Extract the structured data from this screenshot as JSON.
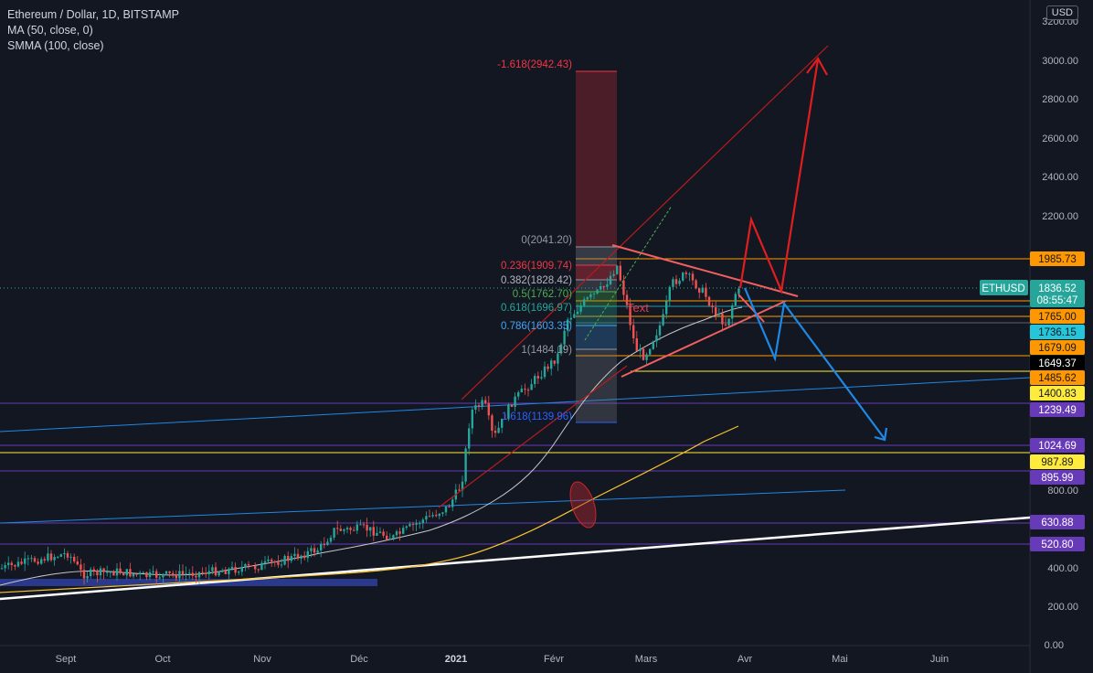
{
  "legend": {
    "symbol": "Ethereum / Dollar, 1D, BITSTAMP",
    "ma": "MA (50, close, 0)",
    "smma": "SMMA (100, close)"
  },
  "currency_button": "USD",
  "chart_data": {
    "type": "candlestick",
    "title": "Ethereum / Dollar, 1D, BITSTAMP",
    "xlabel": "",
    "ylabel": "",
    "ylim": [
      0,
      3200
    ],
    "grid": false,
    "y_ticks": [
      "3200.00",
      "3000.00",
      "2800.00",
      "2600.00",
      "2400.00",
      "2200.00",
      "800.00",
      "400.00",
      "200.00",
      "0.00"
    ],
    "x_ticks": [
      "Sept",
      "Oct",
      "Nov",
      "Déc",
      "2021",
      "Févr",
      "Mars",
      "Avr",
      "Mai",
      "Juin"
    ],
    "current_price": {
      "symbol": "ETHUSD",
      "value": "1836.52",
      "countdown": "08:55:47"
    },
    "price_labels": [
      {
        "value": "1985.73",
        "color": "#ff9800"
      },
      {
        "value": "1765.00",
        "color": "#ff9800"
      },
      {
        "value": "1736.15",
        "color": "#26c6da"
      },
      {
        "value": "1679.09",
        "color": "#ff9800"
      },
      {
        "value": "1649.37",
        "color": "#000000"
      },
      {
        "value": "1485.62",
        "color": "#ff9800"
      },
      {
        "value": "1400.83",
        "color": "#ffeb3b"
      },
      {
        "value": "1239.49",
        "color": "#673ab7"
      },
      {
        "value": "1024.69",
        "color": "#673ab7"
      },
      {
        "value": "987.89",
        "color": "#ffeb3b"
      },
      {
        "value": "895.99",
        "color": "#673ab7"
      },
      {
        "value": "630.88",
        "color": "#673ab7"
      },
      {
        "value": "520.80",
        "color": "#673ab7"
      }
    ],
    "fibonacci": [
      {
        "label": "-1.618(2942.43)",
        "color": "#f23645"
      },
      {
        "label": "0(2041.20)",
        "color": "#9598a1"
      },
      {
        "label": "0.236(1909.74)",
        "color": "#f23645"
      },
      {
        "label": "0.382(1828.42)",
        "color": "#9598a1"
      },
      {
        "label": "0.5(1762.70)",
        "color": "#4caf50"
      },
      {
        "label": "0.618(1696.97)",
        "color": "#26a69a"
      },
      {
        "label": "0.786(1603.35)",
        "color": "#42a5f5"
      },
      {
        "label": "1(1484.19)",
        "color": "#9598a1"
      },
      {
        "label": "1.618(1139.96)",
        "color": "#2962ff"
      }
    ],
    "annotation": "Text",
    "series": [
      {
        "name": "MA (50, close, 0)",
        "color": "#e0e3eb"
      },
      {
        "name": "SMMA (100, close)",
        "color": "#f7c331"
      }
    ]
  }
}
